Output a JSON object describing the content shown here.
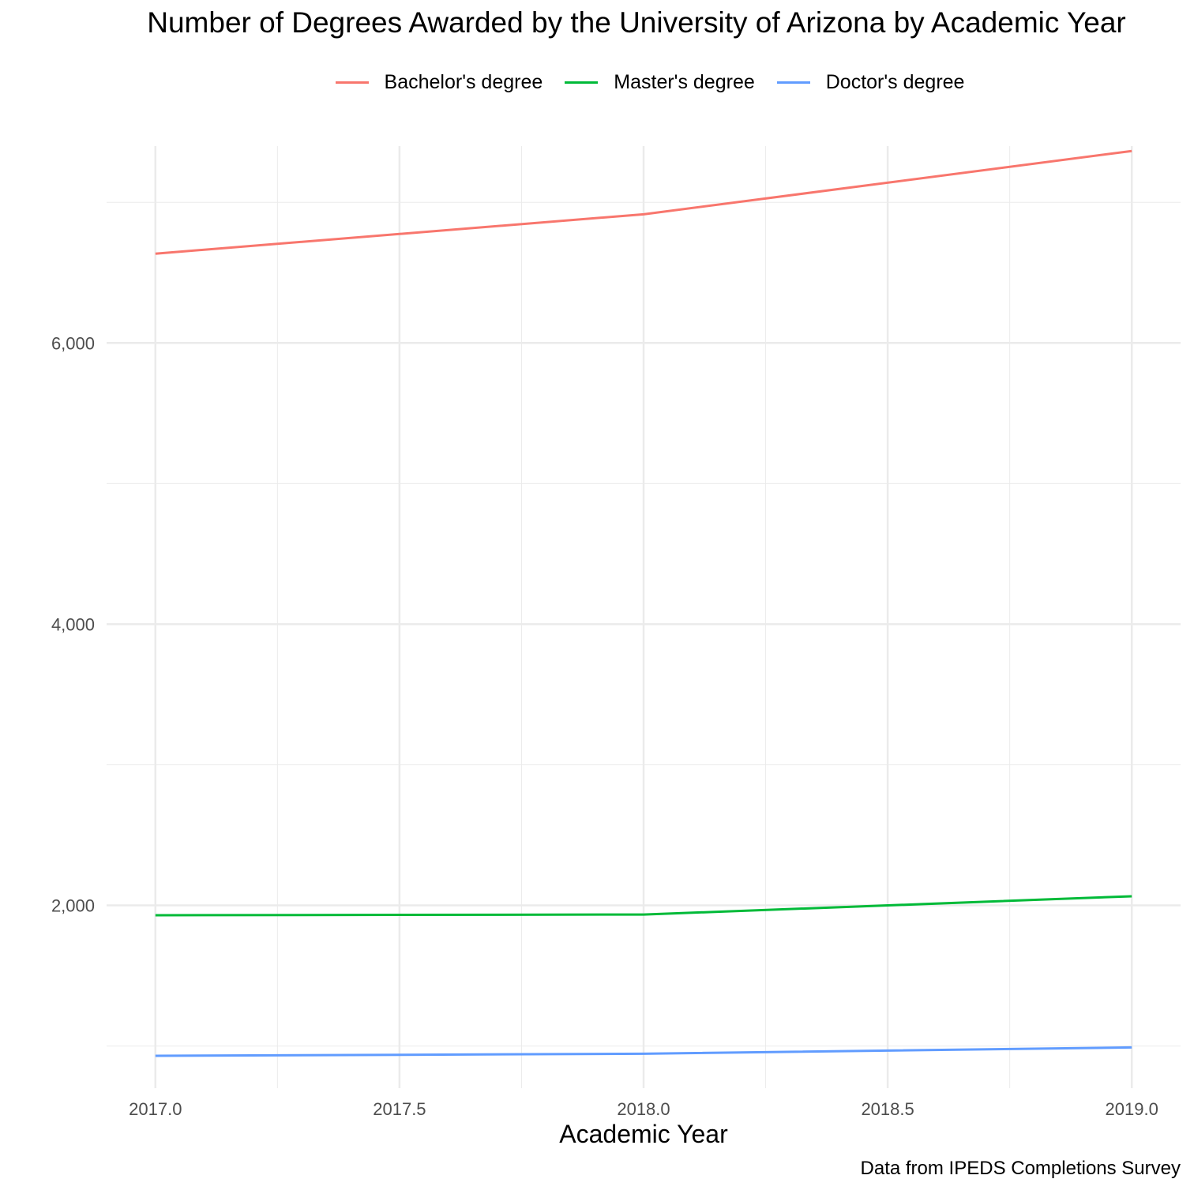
{
  "chart_data": {
    "type": "line",
    "title": "Number of Degrees Awarded by the University of Arizona by Academic Year",
    "xlabel": "Academic Year",
    "ylabel": "",
    "caption": "Data from IPEDS Completions Survey",
    "x": [
      2017,
      2018,
      2019
    ],
    "xlim": [
      2016.9,
      2019.1
    ],
    "ylim": [
      700,
      7400
    ],
    "x_ticks": [
      "2017.0",
      "2017.5",
      "2018.0",
      "2018.5",
      "2019.0"
    ],
    "y_ticks": [
      "2,000",
      "4,000",
      "6,000"
    ],
    "grid": true,
    "legend_position": "top",
    "series": [
      {
        "name": "Bachelor's degree",
        "color": "#F8766D",
        "values": [
          6635,
          6915,
          7365
        ]
      },
      {
        "name": "Master's degree",
        "color": "#00BA38",
        "values": [
          1930,
          1935,
          2065
        ]
      },
      {
        "name": "Doctor's degree",
        "color": "#619CFF",
        "values": [
          930,
          945,
          990
        ]
      }
    ]
  }
}
